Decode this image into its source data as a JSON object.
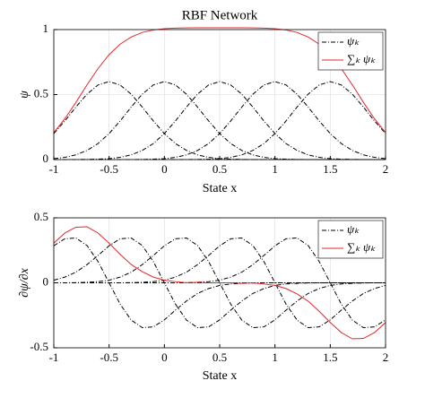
{
  "chart_data": [
    {
      "type": "line",
      "title": "RBF Network",
      "xlabel": "State x",
      "ylabel": "ψ",
      "x": [
        -1,
        -0.9,
        -0.8,
        -0.7,
        -0.6,
        -0.5,
        -0.4,
        -0.3,
        -0.2,
        -0.1,
        0,
        0.1,
        0.2,
        0.3,
        0.4,
        0.5,
        0.6,
        0.7,
        0.8,
        0.9,
        1,
        1.1,
        1.2,
        1.3,
        1.4,
        1.5,
        1.6,
        1.7,
        1.8,
        1.9,
        2
      ],
      "xlim": [
        -1,
        2
      ],
      "xticks": [
        -1,
        -0.5,
        0,
        0.5,
        1,
        1.5,
        2
      ],
      "ylim": [
        0,
        1
      ],
      "yticks": [
        0,
        0.5,
        1
      ],
      "grid": true,
      "legend": "upper right",
      "series": [
        {
          "name": "ψₖ",
          "color": "#000000",
          "style": "dashdot",
          "values": [
            [
              0.2,
              0.297,
              0.404,
              0.503,
              0.574,
              0.6,
              0.574,
              0.503,
              0.404,
              0.297,
              0.2,
              0.123,
              0.07,
              0.036,
              0.017,
              0.007,
              0.003,
              0.001,
              0,
              0,
              0,
              0,
              0,
              0,
              0,
              0,
              0,
              0,
              0,
              0,
              0
            ],
            [
              0.007,
              0.017,
              0.036,
              0.07,
              0.123,
              0.2,
              0.297,
              0.404,
              0.503,
              0.574,
              0.6,
              0.574,
              0.503,
              0.404,
              0.297,
              0.2,
              0.123,
              0.07,
              0.036,
              0.017,
              0.007,
              0.003,
              0.001,
              0,
              0,
              0,
              0,
              0,
              0,
              0,
              0
            ],
            [
              0,
              0,
              0,
              0.001,
              0.003,
              0.007,
              0.017,
              0.036,
              0.07,
              0.123,
              0.2,
              0.297,
              0.404,
              0.503,
              0.574,
              0.6,
              0.574,
              0.503,
              0.404,
              0.297,
              0.2,
              0.123,
              0.07,
              0.036,
              0.017,
              0.007,
              0.003,
              0.001,
              0,
              0,
              0
            ],
            [
              0,
              0,
              0,
              0,
              0,
              0,
              0,
              0,
              0.001,
              0.003,
              0.007,
              0.017,
              0.036,
              0.07,
              0.123,
              0.2,
              0.297,
              0.404,
              0.503,
              0.574,
              0.6,
              0.574,
              0.503,
              0.404,
              0.297,
              0.2,
              0.123,
              0.07,
              0.036,
              0.017,
              0.007
            ],
            [
              0,
              0,
              0,
              0,
              0,
              0,
              0,
              0,
              0,
              0,
              0,
              0,
              0,
              0.001,
              0.003,
              0.007,
              0.017,
              0.036,
              0.07,
              0.123,
              0.2,
              0.297,
              0.404,
              0.503,
              0.574,
              0.6,
              0.574,
              0.503,
              0.404,
              0.297,
              0.2
            ],
            [
              0,
              0,
              0,
              0,
              0,
              0,
              0,
              0,
              0,
              0,
              0,
              0,
              0,
              0,
              0,
              0,
              0,
              0,
              0,
              0,
              0,
              0,
              0,
              0,
              0,
              0,
              0,
              0,
              0,
              0,
              0
            ]
          ]
        },
        {
          "name": "∑ₖ ψₖ",
          "color": "#e8272a",
          "style": "solid",
          "values": [
            0.207,
            0.314,
            0.44,
            0.574,
            0.7,
            0.807,
            0.888,
            0.943,
            0.978,
            0.997,
            1.007,
            1.011,
            1.013,
            1.014,
            1.014,
            1.014,
            1.014,
            1.014,
            1.013,
            1.011,
            1.007,
            0.997,
            0.978,
            0.943,
            0.888,
            0.807,
            0.7,
            0.574,
            0.44,
            0.314,
            0.207
          ]
        }
      ]
    },
    {
      "type": "line",
      "xlabel": "State x",
      "ylabel": "∂ψ/∂x",
      "x": [
        -1,
        -0.9,
        -0.8,
        -0.7,
        -0.6,
        -0.5,
        -0.4,
        -0.3,
        -0.2,
        -0.1,
        0,
        0.1,
        0.2,
        0.3,
        0.4,
        0.5,
        0.6,
        0.7,
        0.8,
        0.9,
        1,
        1.1,
        1.2,
        1.3,
        1.4,
        1.5,
        1.6,
        1.7,
        1.8,
        1.9,
        2
      ],
      "xlim": [
        -1,
        2
      ],
      "xticks": [
        -1,
        -0.5,
        0,
        0.5,
        1,
        1.5,
        2
      ],
      "ylim": [
        -0.5,
        0.5
      ],
      "yticks": [
        -0.5,
        0,
        0.5
      ],
      "grid": true,
      "legend": "upper right",
      "series": [
        {
          "name": "ψₖ",
          "color": "#000000",
          "style": "dashdot",
          "values": [
            [
              0.285,
              0.339,
              0.345,
              0.287,
              0.164,
              0,
              -0.164,
              -0.287,
              -0.345,
              -0.339,
              -0.285,
              -0.21,
              -0.14,
              -0.082,
              -0.044,
              -0.02,
              -0.009,
              -0.004,
              -0.001,
              0,
              0,
              0,
              0,
              0,
              0,
              0,
              0,
              0,
              0,
              0,
              0
            ],
            [
              0.02,
              0.044,
              0.082,
              0.14,
              0.21,
              0.285,
              0.339,
              0.345,
              0.287,
              0.164,
              0,
              -0.164,
              -0.287,
              -0.345,
              -0.339,
              -0.285,
              -0.21,
              -0.14,
              -0.082,
              -0.044,
              -0.02,
              -0.009,
              -0.004,
              -0.001,
              0,
              0,
              0,
              0,
              0,
              0,
              0
            ],
            [
              0,
              0,
              0.001,
              0.004,
              0.009,
              0.02,
              0.044,
              0.082,
              0.14,
              0.21,
              0.285,
              0.339,
              0.345,
              0.287,
              0.164,
              0,
              -0.164,
              -0.287,
              -0.345,
              -0.339,
              -0.285,
              -0.21,
              -0.14,
              -0.082,
              -0.044,
              -0.02,
              -0.009,
              -0.004,
              -0.001,
              0,
              0
            ],
            [
              0,
              0,
              0,
              0,
              0,
              0,
              0,
              0.001,
              0.004,
              0.009,
              0.02,
              0.044,
              0.082,
              0.14,
              0.21,
              0.285,
              0.339,
              0.345,
              0.287,
              0.164,
              0,
              -0.164,
              -0.287,
              -0.345,
              -0.339,
              -0.285,
              -0.21,
              -0.14,
              -0.082,
              -0.044,
              -0.02
            ],
            [
              0,
              0,
              0,
              0,
              0,
              0,
              0,
              0,
              0,
              0,
              0,
              0,
              0.001,
              0.004,
              0.009,
              0.02,
              0.044,
              0.082,
              0.14,
              0.21,
              0.285,
              0.339,
              0.345,
              0.287,
              0.164,
              0,
              -0.164,
              -0.287,
              -0.345,
              -0.339,
              -0.285
            ],
            [
              0,
              0,
              0,
              0,
              0,
              0,
              0,
              0,
              0,
              0,
              0,
              0,
              0,
              0,
              0,
              0,
              0,
              0,
              0,
              0,
              0,
              0,
              0,
              0,
              0,
              0,
              0,
              0,
              0,
              0,
              0
            ]
          ]
        },
        {
          "name": "∑ₖ ψₖ",
          "color": "#e8272a",
          "style": "solid",
          "values": [
            0.305,
            0.383,
            0.428,
            0.431,
            0.383,
            0.305,
            0.219,
            0.141,
            0.086,
            0.044,
            0.02,
            0.009,
            0.001,
            0.004,
            0,
            0,
            0,
            -0.004,
            -0.001,
            -0.009,
            -0.02,
            -0.044,
            -0.086,
            -0.141,
            -0.219,
            -0.305,
            -0.383,
            -0.431,
            -0.428,
            -0.383,
            -0.305
          ]
        }
      ]
    }
  ]
}
